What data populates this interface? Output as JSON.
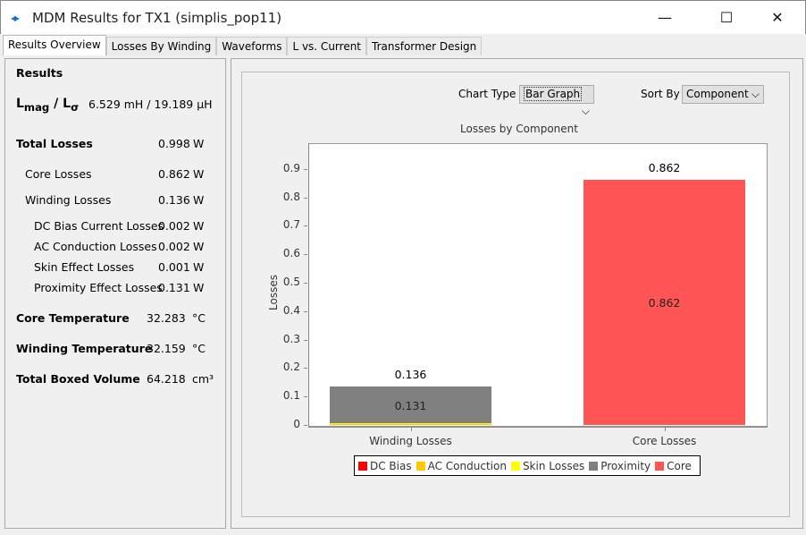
{
  "window": {
    "title": "MDM Results for TX1 (simplis_pop11)",
    "logo": "◂▸",
    "minimize": "—",
    "maximize": "☐",
    "close": "✕"
  },
  "tabs": [
    {
      "label": "Results Overview",
      "active": true
    },
    {
      "label": "Losses By Winding"
    },
    {
      "label": "Waveforms"
    },
    {
      "label": "L vs. Current"
    },
    {
      "label": "Transformer Design"
    }
  ],
  "results": {
    "heading": "Results",
    "inductance": {
      "label_main": "L",
      "sub1": "mag",
      "sep": " / ",
      "label2": "L",
      "sub2": "σ",
      "value": "6.529 mH / 19.189 µH"
    },
    "rows": [
      {
        "label": "Total Losses",
        "value": "0.998",
        "unit": "W"
      },
      {
        "label": "Core Losses",
        "value": "0.862",
        "unit": "W"
      },
      {
        "label": "Winding Losses",
        "value": "0.136",
        "unit": "W"
      },
      {
        "label": "DC Bias Current Losses",
        "value": "0.002",
        "unit": "W"
      },
      {
        "label": "AC Conduction Losses",
        "value": "0.002",
        "unit": "W"
      },
      {
        "label": "Skin Effect Losses",
        "value": "0.001",
        "unit": "W"
      },
      {
        "label": "Proximity Effect Losses",
        "value": "0.131",
        "unit": "W"
      },
      {
        "label": "Core Temperature",
        "value": "32.283",
        "unit": "°C"
      },
      {
        "label": "Winding Temperature",
        "value": "32.159",
        "unit": "°C"
      },
      {
        "label": "Total Boxed Volume",
        "value": "64.218",
        "unit": "cm³"
      }
    ]
  },
  "controls": {
    "chart_type_label": "Chart Type",
    "chart_type_value": "Bar Graph",
    "sort_by_label": "Sort By",
    "sort_by_value": "Component"
  },
  "chart_data": {
    "type": "bar",
    "stacked": true,
    "title": "Losses by Component",
    "xlabel": "",
    "ylabel": "Losses",
    "categories": [
      "Winding Losses",
      "Core Losses"
    ],
    "ylim": [
      0,
      0.99
    ],
    "yticks": [
      "0",
      "0.1",
      "0.2",
      "0.3",
      "0.4",
      "0.5",
      "0.6",
      "0.7",
      "0.8",
      "0.9"
    ],
    "series": [
      {
        "name": "DC Bias",
        "color": "#ff0000",
        "values": [
          0.002,
          0
        ]
      },
      {
        "name": "AC Conduction",
        "color": "#ffc800",
        "values": [
          0.002,
          0
        ]
      },
      {
        "name": "Skin Losses",
        "color": "#ffff00",
        "values": [
          0.001,
          0
        ]
      },
      {
        "name": "Proximity",
        "color": "#808080",
        "values": [
          0.131,
          0
        ]
      },
      {
        "name": "Core",
        "color": "#ff5555",
        "values": [
          0,
          0.862
        ]
      }
    ],
    "totals": [
      "0.136",
      "0.862"
    ],
    "inner_labels": [
      "0.131",
      "0.862"
    ],
    "legend_position": "bottom",
    "grid": false
  }
}
